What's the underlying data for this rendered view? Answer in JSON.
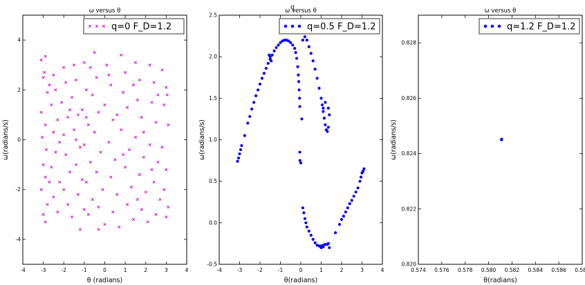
{
  "figure": {
    "top_text": "q"
  },
  "chart_data": [
    {
      "type": "scatter",
      "title": "ω versus θ",
      "xlabel": "θ (radians)",
      "ylabel": "ω(radians/s)",
      "xlim": [
        -4,
        4
      ],
      "ylim": [
        -5,
        5
      ],
      "xticks": [
        -4,
        -3,
        -2,
        -1,
        0,
        1,
        2,
        3,
        4
      ],
      "yticks": [
        -4,
        -2,
        0,
        2,
        4
      ],
      "marker": "x",
      "color": "#cc00cc",
      "legend_position": "top-right",
      "series": [
        {
          "name": "q=0 F_D=1.2",
          "points": [
            [
              -3.1,
              3.2
            ],
            [
              -2.9,
              3.35
            ],
            [
              -2.95,
              2.7
            ],
            [
              -3.0,
              2.5
            ],
            [
              -2.8,
              1.9
            ],
            [
              -3.1,
              1.1
            ],
            [
              -2.9,
              0.6
            ],
            [
              -3.05,
              0.1
            ],
            [
              -2.85,
              -0.4
            ],
            [
              -3.0,
              -1.0
            ],
            [
              -2.9,
              -1.5
            ],
            [
              -3.1,
              -2.0
            ],
            [
              -2.8,
              -2.6
            ],
            [
              -3.0,
              -3.0
            ],
            [
              -2.9,
              -3.3
            ],
            [
              -2.5,
              2.6
            ],
            [
              -2.4,
              2.0
            ],
            [
              -2.6,
              1.4
            ],
            [
              -2.3,
              0.8
            ],
            [
              -2.5,
              0.3
            ],
            [
              -2.4,
              -0.5
            ],
            [
              -2.6,
              -1.1
            ],
            [
              -2.2,
              -1.7
            ],
            [
              -2.5,
              -2.3
            ],
            [
              -2.3,
              -2.9
            ],
            [
              -2.0,
              2.9
            ],
            [
              -1.9,
              2.3
            ],
            [
              -2.1,
              1.5
            ],
            [
              -1.8,
              0.9
            ],
            [
              -2.0,
              0.2
            ],
            [
              -1.9,
              -0.6
            ],
            [
              -1.7,
              -1.3
            ],
            [
              -2.0,
              -2.0
            ],
            [
              -1.8,
              -2.6
            ],
            [
              -1.6,
              -3.1
            ],
            [
              -1.5,
              3.0
            ],
            [
              -1.4,
              2.4
            ],
            [
              -1.6,
              1.7
            ],
            [
              -1.3,
              1.0
            ],
            [
              -1.5,
              0.4
            ],
            [
              -1.2,
              -0.3
            ],
            [
              -1.4,
              -1.0
            ],
            [
              -1.1,
              -1.6
            ],
            [
              -1.3,
              -2.2
            ],
            [
              -1.0,
              -2.8
            ],
            [
              -1.2,
              -3.6
            ],
            [
              -1.0,
              3.1
            ],
            [
              -0.9,
              2.0
            ],
            [
              -1.1,
              1.2
            ],
            [
              -0.8,
              0.6
            ],
            [
              -1.0,
              -0.2
            ],
            [
              -0.7,
              -0.9
            ],
            [
              -0.9,
              -1.7
            ],
            [
              -0.6,
              -2.4
            ],
            [
              -0.8,
              -3.0
            ],
            [
              -0.5,
              3.5
            ],
            [
              -0.4,
              2.5
            ],
            [
              -0.6,
              1.8
            ],
            [
              -0.3,
              1.1
            ],
            [
              -0.5,
              0.3
            ],
            [
              -0.2,
              -0.5
            ],
            [
              -0.4,
              -1.3
            ],
            [
              -0.1,
              -2.0
            ],
            [
              -0.3,
              -2.7
            ],
            [
              0.0,
              -3.4
            ],
            [
              0.1,
              3.0
            ],
            [
              0.3,
              2.2
            ],
            [
              0.0,
              1.4
            ],
            [
              0.4,
              0.8
            ],
            [
              0.2,
              -0.1
            ],
            [
              0.5,
              -0.8
            ],
            [
              0.3,
              -1.5
            ],
            [
              0.6,
              -2.2
            ],
            [
              0.4,
              -2.9
            ],
            [
              0.7,
              -3.5
            ],
            [
              0.8,
              3.4
            ],
            [
              1.0,
              2.7
            ],
            [
              0.9,
              1.9
            ],
            [
              1.1,
              1.3
            ],
            [
              0.8,
              0.4
            ],
            [
              1.2,
              -0.4
            ],
            [
              1.0,
              -1.1
            ],
            [
              1.3,
              -1.9
            ],
            [
              1.1,
              -2.6
            ],
            [
              1.4,
              -3.2
            ],
            [
              1.5,
              3.1
            ],
            [
              1.7,
              2.4
            ],
            [
              1.6,
              1.6
            ],
            [
              1.8,
              0.9
            ],
            [
              1.5,
              0.1
            ],
            [
              1.9,
              -0.7
            ],
            [
              1.7,
              -1.4
            ],
            [
              2.0,
              -2.1
            ],
            [
              1.8,
              -2.8
            ],
            [
              2.1,
              -3.3
            ],
            [
              2.2,
              3.0
            ],
            [
              2.4,
              2.3
            ],
            [
              2.3,
              1.5
            ],
            [
              2.5,
              0.7
            ],
            [
              2.2,
              -0.2
            ],
            [
              2.6,
              -0.9
            ],
            [
              2.4,
              -1.7
            ],
            [
              2.7,
              -2.4
            ],
            [
              2.5,
              -3.0
            ],
            [
              2.8,
              2.8
            ],
            [
              3.0,
              2.1
            ],
            [
              2.9,
              1.4
            ],
            [
              3.1,
              0.6
            ],
            [
              2.8,
              -0.3
            ],
            [
              3.0,
              -1.2
            ],
            [
              2.9,
              -2.0
            ],
            [
              3.1,
              -2.7
            ],
            [
              3.0,
              -3.1
            ],
            [
              -2.7,
              2.2
            ],
            [
              -1.7,
              1.2
            ],
            [
              -0.7,
              2.9
            ],
            [
              0.6,
              1.0
            ],
            [
              1.4,
              2.2
            ],
            [
              2.6,
              1.8
            ],
            [
              -2.2,
              -0.1
            ],
            [
              -1.4,
              0.0
            ],
            [
              0.9,
              -0.6
            ],
            [
              2.3,
              -1.2
            ],
            [
              -0.3,
              -3.6
            ],
            [
              1.6,
              -2.4
            ],
            [
              -2.7,
              -1.7
            ],
            [
              -0.9,
              0.9
            ],
            [
              0.2,
              2.6
            ],
            [
              1.9,
              0.3
            ],
            [
              3.05,
              1.8
            ]
          ]
        }
      ]
    },
    {
      "type": "scatter",
      "title": "ω versus θ",
      "xlabel": "θ(radians)",
      "ylabel": "ω(radians/s)",
      "xlim": [
        -4,
        4
      ],
      "ylim": [
        -0.5,
        2.5
      ],
      "xticks": [
        -4,
        -3,
        -2,
        -1,
        0,
        1,
        2,
        3,
        4
      ],
      "yticks": [
        -0.5,
        0.0,
        0.5,
        1.0,
        1.5,
        2.0,
        2.5
      ],
      "marker": "o",
      "color": "#0000ff",
      "legend_position": "top-right",
      "series": [
        {
          "name": "q=0.5 F_D=1.2",
          "points": [
            [
              -3.1,
              0.74
            ],
            [
              -3.05,
              0.78
            ],
            [
              -3.0,
              0.83
            ],
            [
              -2.95,
              0.88
            ],
            [
              -2.9,
              0.93
            ],
            [
              -2.75,
              1.05
            ],
            [
              -2.6,
              1.2
            ],
            [
              -2.5,
              1.28
            ],
            [
              -2.4,
              1.37
            ],
            [
              -2.3,
              1.45
            ],
            [
              -2.2,
              1.53
            ],
            [
              -2.1,
              1.6
            ],
            [
              -2.0,
              1.67
            ],
            [
              -1.9,
              1.74
            ],
            [
              -1.8,
              1.8
            ],
            [
              -1.7,
              1.86
            ],
            [
              -1.6,
              1.92
            ],
            [
              -1.5,
              1.97
            ],
            [
              -1.4,
              2.02
            ],
            [
              -1.3,
              2.07
            ],
            [
              -1.2,
              2.11
            ],
            [
              -1.1,
              2.14
            ],
            [
              -1.0,
              2.17
            ],
            [
              -0.9,
              2.19
            ],
            [
              -0.8,
              2.2
            ],
            [
              -0.7,
              2.2
            ],
            [
              -0.6,
              2.19
            ],
            [
              -0.5,
              2.17
            ],
            [
              -0.4,
              2.14
            ],
            [
              -0.3,
              2.1
            ],
            [
              -0.25,
              2.05
            ],
            [
              -0.2,
              1.98
            ],
            [
              -0.15,
              1.88
            ],
            [
              -0.12,
              1.78
            ],
            [
              -0.1,
              1.7
            ],
            [
              -0.08,
              1.6
            ],
            [
              -0.06,
              1.5
            ],
            [
              -0.05,
              1.4
            ],
            [
              -1.5,
              2.0
            ],
            [
              -1.45,
              1.95
            ],
            [
              -1.55,
              2.02
            ],
            [
              -0.05,
              0.85
            ],
            [
              -0.04,
              0.75
            ],
            [
              0.0,
              0.72
            ],
            [
              0.05,
              1.25
            ],
            [
              0.1,
              2.2
            ],
            [
              0.2,
              2.24
            ],
            [
              0.3,
              2.2
            ],
            [
              0.4,
              2.12
            ],
            [
              0.5,
              2.04
            ],
            [
              0.6,
              1.95
            ],
            [
              0.7,
              1.85
            ],
            [
              0.8,
              1.74
            ],
            [
              0.9,
              1.62
            ],
            [
              1.0,
              1.5
            ],
            [
              1.05,
              1.42
            ],
            [
              1.1,
              1.34
            ],
            [
              1.15,
              1.26
            ],
            [
              1.2,
              1.18
            ],
            [
              1.25,
              1.12
            ],
            [
              1.3,
              1.1
            ],
            [
              1.35,
              1.15
            ],
            [
              1.4,
              1.3
            ],
            [
              1.35,
              1.38
            ],
            [
              1.2,
              1.45
            ],
            [
              1.1,
              1.38
            ],
            [
              0.1,
              0.18
            ],
            [
              0.15,
              0.12
            ],
            [
              0.2,
              0.05
            ],
            [
              0.25,
              0.0
            ],
            [
              0.3,
              -0.05
            ],
            [
              0.4,
              -0.1
            ],
            [
              0.5,
              -0.15
            ],
            [
              0.6,
              -0.2
            ],
            [
              0.7,
              -0.24
            ],
            [
              0.8,
              -0.27
            ],
            [
              0.9,
              -0.28
            ],
            [
              1.0,
              -0.28
            ],
            [
              1.1,
              -0.27
            ],
            [
              1.2,
              -0.26
            ],
            [
              1.3,
              -0.26
            ],
            [
              1.35,
              -0.25
            ],
            [
              1.0,
              -0.3
            ],
            [
              1.1,
              -0.29
            ],
            [
              1.4,
              -0.3
            ],
            [
              1.7,
              -0.12
            ],
            [
              1.9,
              -0.02
            ],
            [
              2.0,
              0.04
            ],
            [
              2.1,
              0.08
            ],
            [
              2.2,
              0.13
            ],
            [
              2.3,
              0.18
            ],
            [
              2.4,
              0.23
            ],
            [
              2.5,
              0.27
            ],
            [
              2.6,
              0.32
            ],
            [
              2.7,
              0.37
            ],
            [
              2.8,
              0.42
            ],
            [
              2.9,
              0.5
            ],
            [
              2.95,
              0.55
            ],
            [
              3.0,
              0.6
            ],
            [
              3.05,
              0.62
            ],
            [
              3.1,
              0.65
            ]
          ]
        }
      ]
    },
    {
      "type": "scatter",
      "title": "ω versus θ",
      "xlabel": "θ(radians)",
      "ylabel": "ω(radians/s)",
      "xlim": [
        0.574,
        0.588
      ],
      "ylim": [
        0.82,
        0.829
      ],
      "xticks": [
        0.574,
        0.576,
        0.578,
        0.58,
        0.582,
        0.584,
        0.586,
        0.588
      ],
      "xtick_labels": [
        "0.574",
        "0.576",
        "0.578",
        "0.580",
        "0.582",
        "0.584",
        "0.586",
        "0.588"
      ],
      "yticks": [
        0.82,
        0.822,
        0.824,
        0.826,
        0.828
      ],
      "ytick_labels": [
        "0.820",
        "0.822",
        "0.824",
        "0.826",
        "0.828"
      ],
      "marker": "o",
      "color": "#0000ff",
      "legend_position": "top-right",
      "series": [
        {
          "name": "q=1.2 F_D=1.2",
          "points": [
            [
              0.5811,
              0.8245
            ],
            [
              0.58112,
              0.82452
            ]
          ]
        }
      ]
    }
  ]
}
